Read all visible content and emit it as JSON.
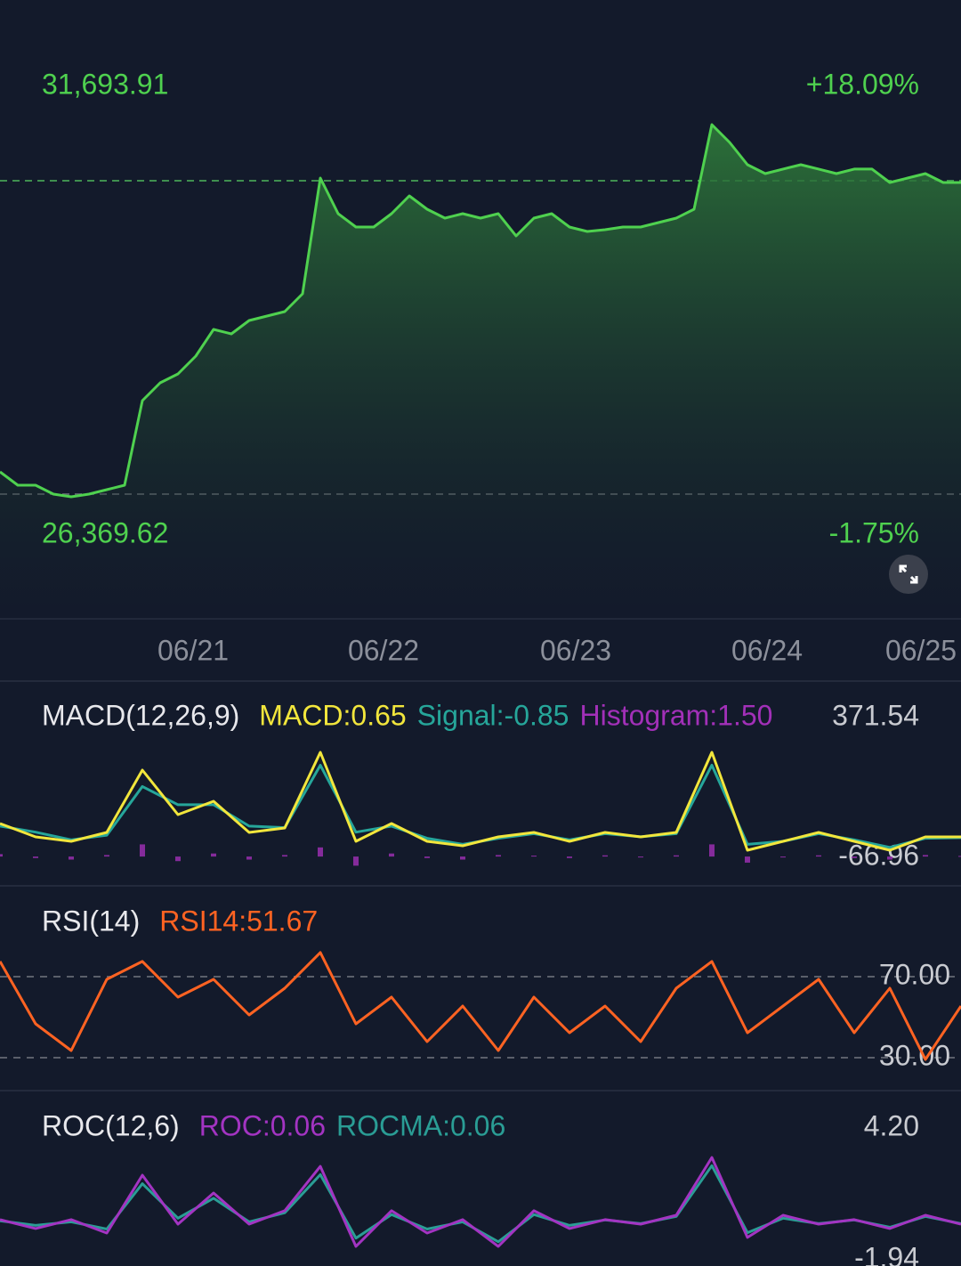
{
  "chart_data": [
    {
      "type": "area",
      "color": "#4fd14f",
      "values": [
        26748,
        26521,
        26521,
        26370,
        26324,
        26370,
        26445,
        26521,
        27958,
        28260,
        28412,
        28714,
        29168,
        29092,
        29319,
        29395,
        29470,
        29773,
        31739,
        31134,
        30907,
        30907,
        31134,
        31437,
        31210,
        31059,
        31134,
        31059,
        31134,
        30756,
        31059,
        31134,
        30907,
        30832,
        30862,
        30907,
        30907,
        30983,
        31059,
        31210,
        32647,
        32344,
        31966,
        31815,
        31891,
        31966,
        31891,
        31815,
        31891,
        31891,
        31664,
        31739,
        31815,
        31664,
        31664
      ],
      "xlim": [
        0,
        54
      ],
      "xticks": [
        {
          "value": 10.85,
          "label": "06/21"
        },
        {
          "value": 21.55,
          "label": "06/22"
        },
        {
          "value": 32.35,
          "label": "06/23"
        },
        {
          "value": 43.1,
          "label": "06/24"
        },
        {
          "value": 51.75,
          "label": "06/25"
        }
      ],
      "ylim": [
        24252,
        34764
      ],
      "yticks": [
        {
          "value": 31693.91,
          "label": "31,693.91"
        },
        {
          "value": 26369.62,
          "label": "26,369.62"
        }
      ],
      "y2lim": [
        -9.64,
        29.53
      ],
      "y2ticks": [
        {
          "value": 18.09,
          "label": "+18.09%"
        },
        {
          "value": -1.75,
          "label": "-1.75%"
        }
      ],
      "grid": true
    },
    {
      "type": "line",
      "title": "MACD(12,26,9)",
      "xlim": [
        0,
        27
      ],
      "ylim": [
        -66.96,
        371.54
      ],
      "series": [
        {
          "name": "MACD:0.65",
          "color": "#f2e63c",
          "values": [
            108.5,
            64.6,
            50,
            79.2,
            283.9,
            137.7,
            181.5,
            79.2,
            93.8,
            342.3,
            50,
            108.5,
            50,
            35.4,
            64.6,
            79.2,
            50,
            79.2,
            64.6,
            79.2,
            342.3,
            20.8,
            50,
            79.2,
            50,
            20.8,
            64.6,
            64.6
          ]
        },
        {
          "name": "Signal:-0.85",
          "color": "#26a69a",
          "values": [
            100,
            80,
            55,
            70,
            230,
            170,
            170,
            100,
            95,
            300,
            80,
            100,
            60,
            40,
            60,
            75,
            55,
            75,
            65,
            75,
            300,
            40,
            50,
            75,
            55,
            30,
            60,
            62
          ]
        },
        {
          "name": "Histogram:1.50",
          "color": "#a230b8",
          "type": "bar",
          "values": [
            8,
            -5,
            -10,
            5,
            40,
            -15,
            10,
            -10,
            5,
            30,
            -30,
            10,
            -5,
            -10,
            5,
            3,
            -5,
            4,
            -3,
            4,
            40,
            -20,
            0,
            4,
            -5,
            -10,
            5,
            2
          ]
        }
      ]
    },
    {
      "type": "line",
      "title": "RSI(14)",
      "xlim": [
        0,
        27
      ],
      "ylim": [
        18.13,
        90.66
      ],
      "yticks": [
        {
          "value": 70,
          "label": "70.00"
        },
        {
          "value": 30,
          "label": "30.00"
        }
      ],
      "grid": true,
      "series": [
        {
          "name": "RSI14:51.67",
          "color": "#ff6322",
          "values": [
            77.5,
            46.7,
            33.5,
            68.7,
            77.5,
            59.9,
            68.7,
            51.1,
            64.3,
            81.9,
            46.7,
            59.9,
            37.9,
            55.5,
            33.5,
            59.9,
            42.3,
            55.5,
            37.9,
            64.3,
            77.5,
            42.3,
            55.5,
            68.7,
            42.3,
            64.3,
            29.1,
            55.5
          ]
        }
      ]
    },
    {
      "type": "line",
      "title": "ROC(12,6)",
      "xlim": [
        0,
        27
      ],
      "ylim": [
        -1.94,
        4.2
      ],
      "yticks": [
        {
          "value": 4.2,
          "label": "4.20"
        },
        {
          "value": -1.94,
          "label": "-1.94"
        }
      ],
      "grid": false,
      "series": [
        {
          "name": "ROC:0.06",
          "color": "#a334c2",
          "values": [
            0.52,
            0.03,
            0.52,
            -0.22,
            2.97,
            0.27,
            1.99,
            0.27,
            1.01,
            3.46,
            -0.96,
            1.01,
            -0.22,
            0.52,
            -0.96,
            1.01,
            0.03,
            0.52,
            0.27,
            0.76,
            3.95,
            -0.46,
            0.76,
            0.27,
            0.52,
            0.03,
            0.76,
            0.27
          ]
        },
        {
          "name": "ROCMA:0.06",
          "color": "#2a9d95",
          "values": [
            0.45,
            0.2,
            0.4,
            0,
            2.5,
            0.6,
            1.7,
            0.4,
            0.9,
            3,
            -0.5,
            0.8,
            0,
            0.4,
            -0.7,
            0.8,
            0.2,
            0.5,
            0.3,
            0.7,
            3.5,
            -0.2,
            0.6,
            0.3,
            0.5,
            0.1,
            0.7,
            0.3
          ]
        }
      ]
    }
  ]
}
